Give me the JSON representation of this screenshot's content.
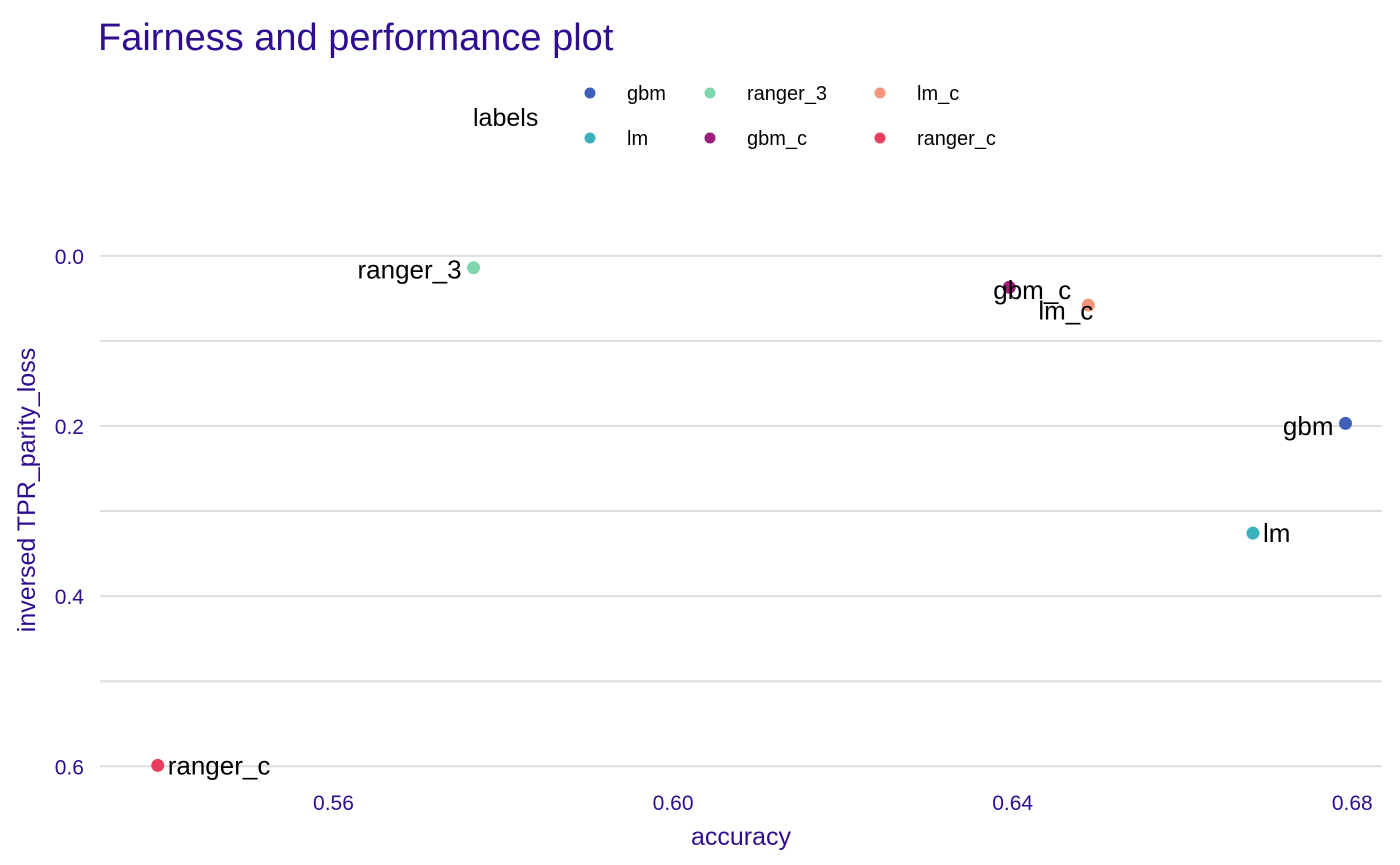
{
  "chart_data": {
    "type": "scatter",
    "title": "Fairness and performance plot",
    "xlabel": "accuracy",
    "ylabel": "inversed TPR_parity_loss",
    "xlim": [
      0.5325,
      0.6835
    ],
    "ylim": [
      0.622,
      -0.095
    ],
    "y_axis_reversed": true,
    "x_ticks": [
      0.56,
      0.6,
      0.64,
      0.68
    ],
    "x_tick_labels": [
      "0.56",
      "0.60",
      "0.64",
      "0.68"
    ],
    "y_ticks": [
      0.0,
      0.2,
      0.4,
      0.6
    ],
    "y_tick_labels": [
      "0.0",
      "0.2",
      "0.4",
      "0.6"
    ],
    "y_minor_gridlines": [
      0.1,
      0.3,
      0.5
    ],
    "grid": true,
    "legend": {
      "title": "labels",
      "placement": "top",
      "entries": [
        {
          "name": "gbm",
          "color": "#3f60b8"
        },
        {
          "name": "lm",
          "color": "#3bb1bd"
        },
        {
          "name": "ranger_3",
          "color": "#7fd6ac"
        },
        {
          "name": "gbm_c",
          "color": "#9c1d7a"
        },
        {
          "name": "lm_c",
          "color": "#f4967c"
        },
        {
          "name": "ranger_c",
          "color": "#e83f5d"
        }
      ]
    },
    "series": [
      {
        "name": "gbm",
        "x": 0.6792,
        "y": 0.197,
        "color": "#3f60b8",
        "label_side": "left",
        "label_dy": 0.003
      },
      {
        "name": "lm",
        "x": 0.6683,
        "y": 0.326,
        "color": "#3bb1bd",
        "label_side": "right",
        "label_dy": 0.0
      },
      {
        "name": "ranger_3",
        "x": 0.5765,
        "y": 0.014,
        "color": "#7fd6ac",
        "label_side": "left",
        "label_dy": 0.002
      },
      {
        "name": "gbm_c",
        "x": 0.6396,
        "y": 0.037,
        "color": "#9c1d7a",
        "label_side": "center",
        "label_dy": 0.003
      },
      {
        "name": "lm_c",
        "x": 0.6489,
        "y": 0.058,
        "color": "#f4967c",
        "label_side": "left-below",
        "label_dy": 0.004
      },
      {
        "name": "ranger_c",
        "x": 0.5393,
        "y": 0.599,
        "color": "#e83f5d",
        "label_side": "right",
        "label_dy": 0.0
      }
    ],
    "colors": {
      "title": "#2f0d91",
      "axis_text": "#2f0d91",
      "grid": "#dedede",
      "label_text": "#000000"
    }
  }
}
